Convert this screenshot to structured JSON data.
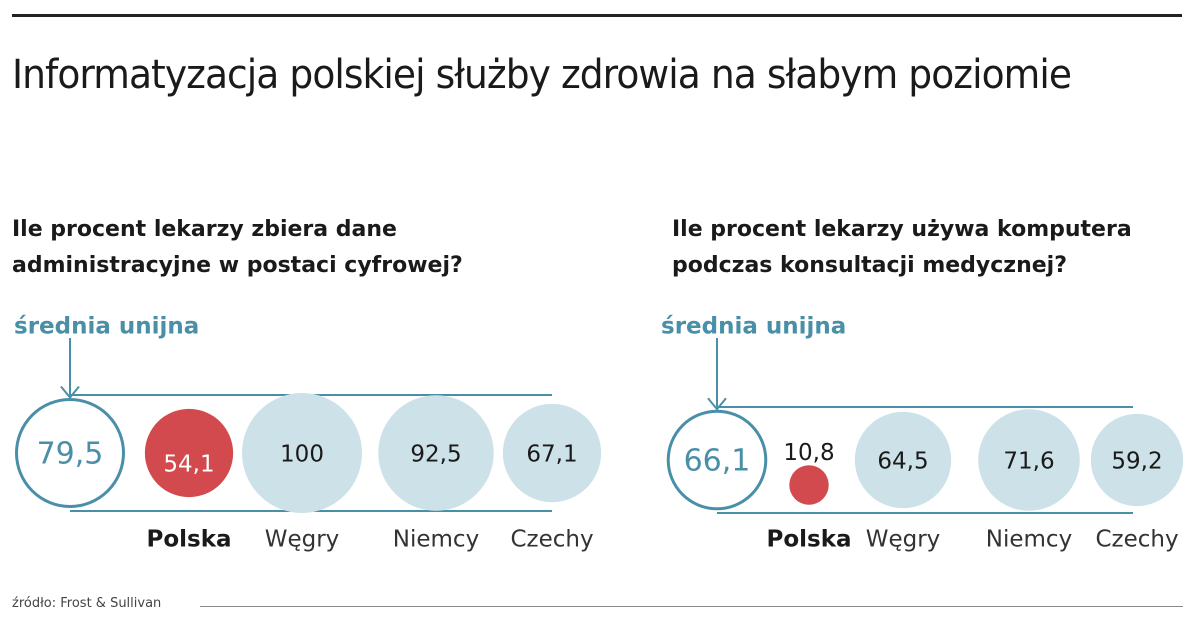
{
  "title": "Informatyzacja polskiej służby zdrowia na słabym poziomie",
  "source": "źródło: Frost & Sullivan",
  "colors": {
    "accent": "#4a8fa8",
    "poland": "#d24a4e",
    "bubble": "#cde1e8",
    "text": "#1a1a1a"
  },
  "chart_data": [
    {
      "type": "bubble",
      "title": "Ile procent lekarzy zbiera dane administracyjne w postaci cyfrowej?",
      "reference_label": "średnia unijna",
      "reference_value": 79.5,
      "reference_value_label": "79,5",
      "categories": [
        "Polska",
        "Węgry",
        "Niemcy",
        "Czechy"
      ],
      "values": [
        54.1,
        100,
        92.5,
        67.1
      ],
      "value_labels": [
        "54,1",
        "100",
        "92,5",
        "67,1"
      ],
      "highlight": "Polska"
    },
    {
      "type": "bubble",
      "title": "Ile procent lekarzy używa komputera podczas konsultacji medycznej?",
      "reference_label": "średnia unijna",
      "reference_value": 66.1,
      "reference_value_label": "66,1",
      "categories": [
        "Polska",
        "Węgry",
        "Niemcy",
        "Czechy"
      ],
      "values": [
        10.8,
        64.5,
        71.6,
        59.2
      ],
      "value_labels": [
        "10,8",
        "64,5",
        "71,6",
        "59,2"
      ],
      "highlight": "Polska"
    }
  ]
}
